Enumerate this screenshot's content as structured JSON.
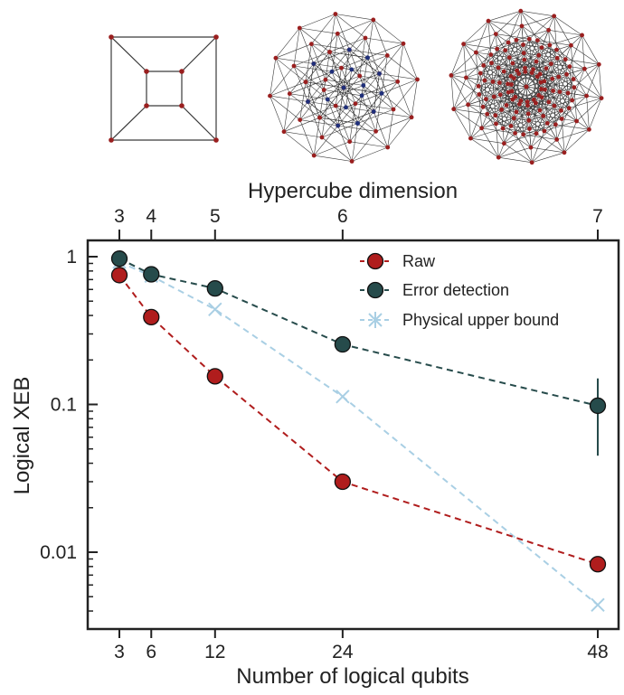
{
  "chart_data": {
    "type": "line",
    "title": "",
    "xlabel": "Number of logical qubits",
    "ylabel": "Logical XEB",
    "x2label": "Hypercube dimension",
    "x": [
      3,
      6,
      12,
      24,
      48
    ],
    "x_ticks": [
      3,
      6,
      12,
      24,
      48
    ],
    "x2": [
      3,
      4,
      5,
      6,
      7
    ],
    "x2_ticks": [
      3,
      4,
      5,
      6,
      7
    ],
    "yscale": "log",
    "ylim": [
      0.003,
      1.5
    ],
    "y_ticks": [
      1,
      0.1,
      0.01
    ],
    "y_tick_labels": [
      "1",
      "0.1",
      "0.01"
    ],
    "grid": false,
    "legend_position": "top-right",
    "series": [
      {
        "name": "Raw",
        "marker": "circle",
        "color": "#b01d1d",
        "values": [
          0.75,
          0.39,
          0.155,
          0.03,
          0.0083
        ]
      },
      {
        "name": "Error detection",
        "marker": "circle",
        "color": "#264b4b",
        "values": [
          0.97,
          0.76,
          0.61,
          0.255,
          0.098
        ],
        "error_low": [
          null,
          null,
          null,
          null,
          0.045
        ],
        "error_high": [
          null,
          null,
          null,
          null,
          0.15
        ]
      },
      {
        "name": "Physical upper bound",
        "marker": "x",
        "color": "#a9cfe4",
        "values": [
          0.92,
          0.74,
          0.44,
          0.113,
          0.0044
        ]
      }
    ],
    "graph_colors": {
      "nodes": "#9a1f1f",
      "inner_nodes": "#1f2f7a",
      "edges": "#3a3a3a"
    }
  }
}
